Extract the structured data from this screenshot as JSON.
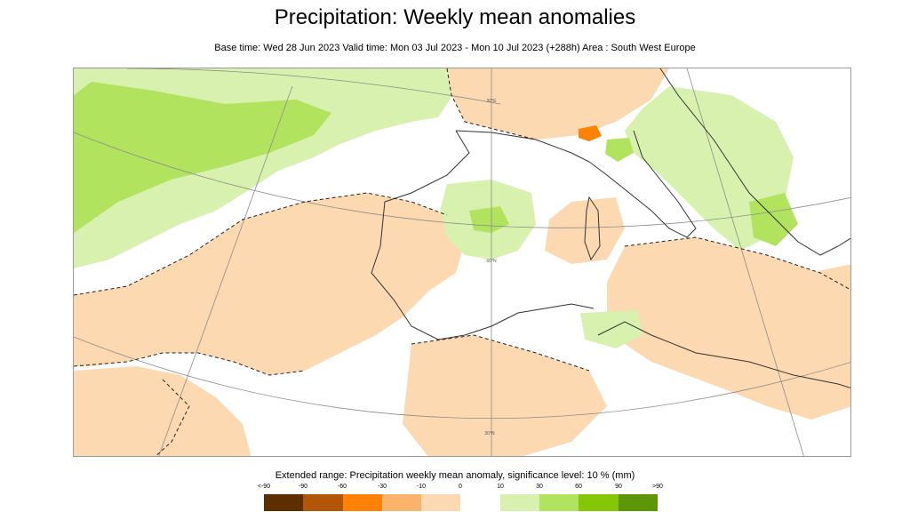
{
  "title": "Precipitation: Weekly mean anomalies",
  "subtitle": "Base time: Wed 28 Jun 2023 Valid time: Mon 03 Jul 2023 - Mon 10 Jul 2023 (+288h) Area : South West Europe",
  "legend": {
    "title": "Extended range: Precipitation weekly mean anomaly, significance level: 10 % (mm)",
    "labels": [
      "<-90",
      "-90",
      "-60",
      "-30",
      "-10",
      "0",
      "10",
      "30",
      "60",
      "90",
      ">90"
    ],
    "colors": [
      "#5c2e00",
      "#b15509",
      "#ff8107",
      "#fbb36c",
      "#fdd9b2",
      "#ffffff",
      "#d8f1ae",
      "#b1e35f",
      "#86c608",
      "#5e9609",
      "#4a6f0b"
    ]
  },
  "map": {
    "area": "South West Europe",
    "graticule_labels": [
      "30°E",
      "60°N",
      "30°N"
    ]
  }
}
